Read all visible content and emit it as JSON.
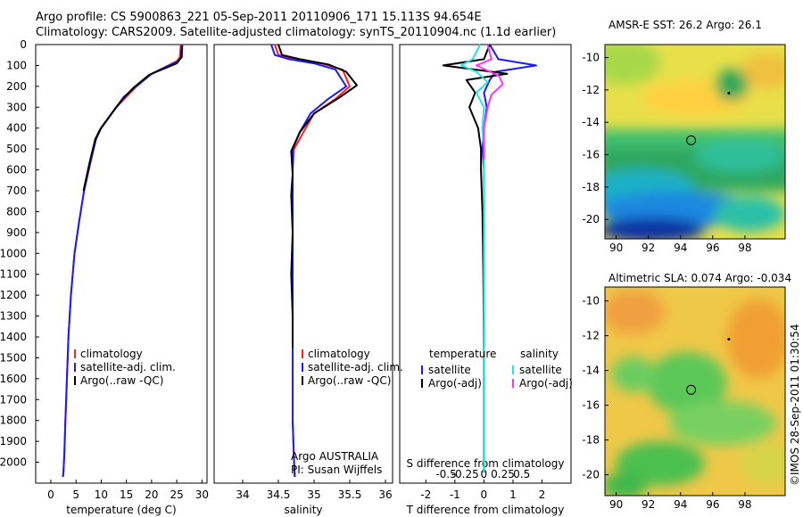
{
  "header": {
    "line1": "Argo profile: CS 5900863_221 05-Sep-2011 20110906_171 15.113S 94.654E",
    "line2": "Climatology: CARS2009. Satellite-adjusted climatology: synTS_20110904.nc (1.1d earlier)"
  },
  "footer_stamp": "©IMOS 28-Sep-2011 01:30:54",
  "colors": {
    "climatology": "#ff2020",
    "satellite": "#1a1aff",
    "argo": "#000000",
    "sal_satellite": "#22e5e5",
    "sal_argo": "#ff33ff"
  },
  "chart_data": [
    {
      "type": "line",
      "xlabel": "temperature (deg C)",
      "ylabel": "",
      "xlim": [
        -3,
        31
      ],
      "ylim": [
        2100,
        0
      ],
      "xticks": [
        "0",
        "5",
        "10",
        "15",
        "20",
        "25",
        "30"
      ],
      "yticks": [
        "0",
        "100",
        "200",
        "300",
        "400",
        "500",
        "600",
        "700",
        "800",
        "900",
        "1000",
        "1100",
        "1200",
        "1300",
        "1400",
        "1500",
        "1600",
        "1700",
        "1800",
        "1900",
        "2000"
      ],
      "legend": {
        "position": "bottom-center",
        "entries": [
          "climatology",
          "satellite-adj. clim.",
          "Argo(..raw -QC)"
        ]
      },
      "series": [
        {
          "name": "climatology",
          "x": [
            25.8,
            25.6,
            25,
            20,
            17,
            15,
            13,
            11.5,
            10,
            9,
            8.5,
            7.9,
            6.6,
            5.6,
            4.7,
            4,
            3.5,
            3.2,
            2.9,
            2.7,
            2.5,
            2.4
          ],
          "y": [
            0,
            60,
            80,
            140,
            200,
            250,
            300,
            350,
            400,
            450,
            500,
            560,
            700,
            850,
            1000,
            1200,
            1400,
            1600,
            1800,
            1950,
            2050,
            2070
          ]
        },
        {
          "name": "satellite-adj. clim.",
          "x": [
            26.1,
            26,
            25.3,
            20,
            17,
            14.5,
            13,
            11.5,
            10,
            9,
            8.5,
            7.9,
            6.6,
            5.6,
            4.7,
            4,
            3.5,
            3.2,
            2.9,
            2.7,
            2.5,
            2.4
          ],
          "y": [
            0,
            60,
            80,
            140,
            200,
            250,
            300,
            350,
            400,
            450,
            500,
            560,
            700,
            850,
            1000,
            1200,
            1400,
            1600,
            1800,
            1950,
            2050,
            2070
          ]
        },
        {
          "name": "Argo(..raw -QC)",
          "x": [
            26,
            25.9,
            25,
            19.5,
            16.5,
            14.5,
            12.8,
            11.3,
            9.8,
            8.8,
            8.3,
            7.7,
            6.5
          ],
          "y": [
            5,
            60,
            90,
            145,
            205,
            255,
            305,
            355,
            405,
            455,
            505,
            565,
            700
          ]
        }
      ]
    },
    {
      "type": "line",
      "xlabel": "salinity",
      "ylabel": "",
      "xlim": [
        33.6,
        36.1
      ],
      "ylim": [
        2100,
        0
      ],
      "xticks": [
        "34",
        "34.5",
        "35",
        "35.5",
        "36"
      ],
      "legend": {
        "position": "bottom-center",
        "entries": [
          "climatology",
          "satellite-adj. clim.",
          "Argo(..raw -QC)"
        ]
      },
      "annotation": [
        "Argo AUSTRALIA",
        "PI: Susan Wijffels"
      ],
      "series": [
        {
          "name": "climatology",
          "x": [
            34.45,
            34.5,
            34.7,
            35.1,
            35.4,
            35.5,
            35.3,
            35.0,
            34.85,
            34.72,
            34.7,
            34.7,
            34.7,
            34.7,
            34.7,
            34.72,
            34.73
          ],
          "y": [
            0,
            50,
            70,
            90,
            120,
            200,
            260,
            330,
            420,
            500,
            600,
            800,
            1200,
            1500,
            1800,
            2000,
            2070
          ]
        },
        {
          "name": "satellite-adj. clim.",
          "x": [
            34.4,
            34.45,
            34.65,
            35.0,
            35.3,
            35.45,
            35.2,
            34.95,
            34.8,
            34.7,
            34.7,
            34.7,
            34.7,
            34.7,
            34.7,
            34.72,
            34.73
          ],
          "y": [
            0,
            50,
            70,
            90,
            120,
            200,
            260,
            330,
            420,
            500,
            600,
            800,
            1200,
            1500,
            1800,
            2000,
            2070
          ]
        },
        {
          "name": "Argo(..raw -QC)",
          "x": [
            34.5,
            34.55,
            34.8,
            35.2,
            35.45,
            35.6,
            35.35,
            35.0,
            34.8,
            34.68,
            34.7,
            34.68,
            34.7,
            34.68,
            34.7,
            34.7
          ],
          "y": [
            0,
            50,
            70,
            95,
            130,
            195,
            255,
            330,
            420,
            510,
            620,
            720,
            900,
            1100,
            1300,
            1450
          ]
        }
      ]
    },
    {
      "type": "line",
      "xlabel": "T difference from climatology",
      "xlabel_secondary": "S difference from climatology",
      "xlim": [
        -2.9,
        3.0
      ],
      "ylim": [
        2100,
        0
      ],
      "xticks": [
        "-2",
        "-1",
        "0",
        "1",
        "2"
      ],
      "xticks_secondary": [
        "-0.5",
        "-0.25",
        "0",
        "0.25",
        "0.5"
      ],
      "legend": {
        "position": "bottom-center",
        "groups": [
          {
            "title": "temperature",
            "entries": [
              "satellite",
              "Argo(-adj)"
            ]
          },
          {
            "title": "salinity",
            "entries": [
              "satellite",
              "Argo(-adj)"
            ]
          }
        ]
      },
      "series": [
        {
          "name": "T satellite",
          "x": [
            0.2,
            0.5,
            1.8,
            0.4,
            0.2,
            0.0,
            0.1,
            0.0,
            -0.05,
            0.0,
            0.0,
            0.0,
            0.0,
            0.0,
            0.0
          ],
          "y": [
            0,
            70,
            100,
            130,
            170,
            230,
            300,
            400,
            500,
            600,
            800,
            1100,
            1500,
            1800,
            2050
          ]
        },
        {
          "name": "T Argo(-adj)",
          "x": [
            0.2,
            0.0,
            -1.4,
            0.8,
            -0.6,
            -0.3,
            -0.5,
            -0.2,
            -0.1,
            -0.1,
            -0.05,
            -0.02,
            0.0,
            0.0,
            0.0
          ],
          "y": [
            0,
            70,
            100,
            140,
            170,
            230,
            300,
            400,
            500,
            600,
            800,
            1100,
            1500,
            1800,
            2050
          ]
        },
        {
          "name": "S satellite",
          "x": [
            -0.05,
            -0.15,
            -0.3,
            -0.1,
            0.05,
            -0.1,
            0.0,
            -0.02,
            0.0,
            0.0,
            0.0,
            0.0,
            0.0,
            0.0
          ],
          "y": [
            0,
            70,
            100,
            130,
            180,
            230,
            300,
            400,
            500,
            700,
            1000,
            1400,
            1800,
            2050
          ]
        },
        {
          "name": "S Argo(-adj)",
          "x": [
            0.05,
            0.1,
            -0.1,
            0.2,
            0.25,
            0.1,
            0.05,
            0.0,
            0.0,
            0.0
          ],
          "y": [
            0,
            70,
            100,
            150,
            190,
            240,
            300,
            400,
            500,
            550
          ]
        }
      ]
    },
    {
      "type": "heatmap",
      "title": "AMSR-E SST: 26.2 Argo: 26.1",
      "xlim": [
        89.3,
        100.5
      ],
      "ylim": [
        -21.2,
        -9.2
      ],
      "xticks": [
        "90",
        "92",
        "94",
        "96",
        "98"
      ],
      "yticks": [
        "-10",
        "-12",
        "-14",
        "-16",
        "-18",
        "-20"
      ],
      "argo_position": [
        94.654,
        -15.113
      ]
    },
    {
      "type": "heatmap",
      "title": "Altimetric SLA: 0.074 Argo: -0.034",
      "xlim": [
        89.3,
        100.5
      ],
      "ylim": [
        -21.2,
        -9.2
      ],
      "xticks": [
        "90",
        "92",
        "94",
        "96",
        "98"
      ],
      "yticks": [
        "-10",
        "-12",
        "-14",
        "-16",
        "-18",
        "-20"
      ],
      "argo_position": [
        94.654,
        -15.113
      ]
    }
  ]
}
